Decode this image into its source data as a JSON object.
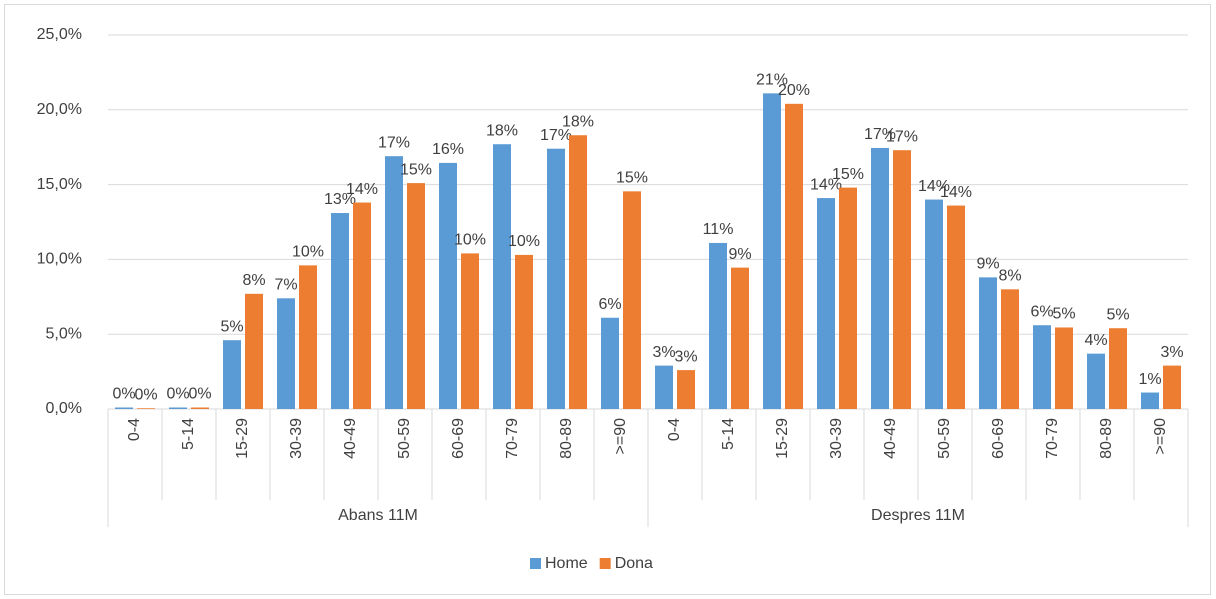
{
  "chart_data": {
    "type": "bar",
    "categories": [
      "0-4",
      "5-14",
      "15-29",
      "30-39",
      "40-49",
      "50-59",
      "60-69",
      "70-79",
      "80-89",
      ">=90",
      "0-4",
      "5-14",
      "15-29",
      "30-39",
      "40-49",
      "50-59",
      "60-69",
      "70-79",
      "80-89",
      ">=90"
    ],
    "groups": [
      "Abans 11M",
      "Despres 11M"
    ],
    "series": [
      {
        "name": "Home",
        "color": "#5b9bd5",
        "values": [
          0.1,
          0.1,
          4.6,
          7.4,
          13.1,
          16.9,
          16.45,
          17.7,
          17.4,
          6.1,
          2.9,
          11.1,
          21.1,
          14.1,
          17.45,
          14.0,
          8.8,
          5.6,
          3.7,
          1.1
        ],
        "value_labels": [
          "0%",
          "0%",
          "5%",
          "7%",
          "13%",
          "17%",
          "16%",
          "18%",
          "17%",
          "6%",
          "3%",
          "11%",
          "21%",
          "14%",
          "17%",
          "14%",
          "9%",
          "6%",
          "4%",
          "1%"
        ]
      },
      {
        "name": "Dona",
        "color": "#ed7d31",
        "values": [
          0.05,
          0.1,
          7.7,
          9.6,
          13.8,
          15.1,
          10.4,
          10.3,
          18.3,
          14.55,
          2.6,
          9.45,
          20.4,
          14.8,
          17.3,
          13.6,
          8.0,
          5.45,
          5.4,
          2.9
        ],
        "value_labels": [
          "0%",
          "0%",
          "8%",
          "10%",
          "14%",
          "15%",
          "10%",
          "10%",
          "18%",
          "15%",
          "3%",
          "9%",
          "20%",
          "15%",
          "17%",
          "14%",
          "8%",
          "5%",
          "5%",
          "3%"
        ]
      }
    ],
    "ylim": [
      0,
      25
    ],
    "yticks": [
      {
        "value": 0,
        "label": "0,0%"
      },
      {
        "value": 5,
        "label": "5,0%"
      },
      {
        "value": 10,
        "label": "10,0%"
      },
      {
        "value": 15,
        "label": "15,0%"
      },
      {
        "value": 20,
        "label": "20,0%"
      },
      {
        "value": 25,
        "label": "25,0%"
      }
    ],
    "grid": true,
    "legend": "bottom"
  }
}
